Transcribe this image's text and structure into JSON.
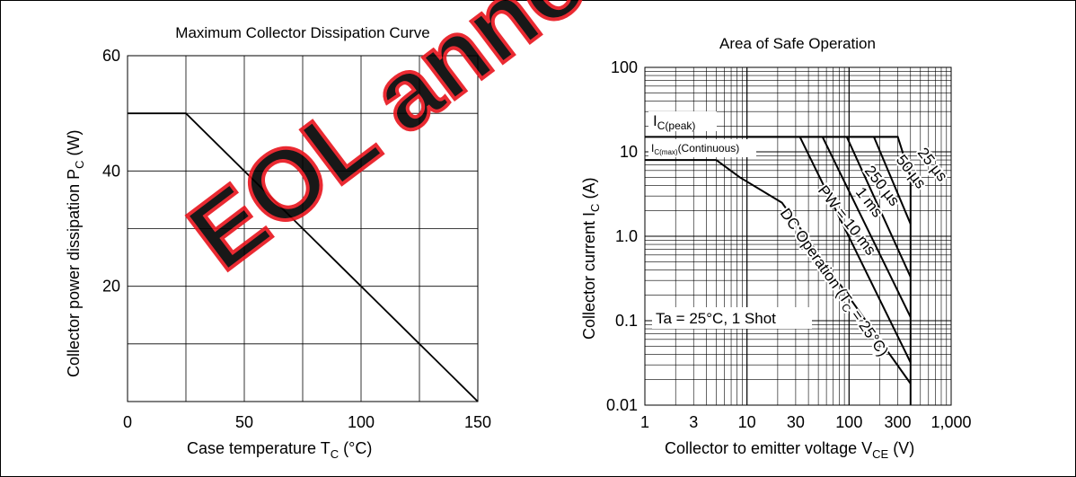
{
  "watermark": {
    "text": "EOL announced",
    "color": "#e8141c"
  },
  "chart_data": [
    {
      "type": "line",
      "title": "Maximum Collector Dissipation Curve",
      "xlabel": {
        "main": "Case temperature  T",
        "sub": "C",
        "unit": "(°C)"
      },
      "ylabel": {
        "main": "Collector power dissipation  P",
        "sub": "C",
        "unit": "(W)"
      },
      "xlim": [
        0,
        150
      ],
      "ylim": [
        0,
        60
      ],
      "x_ticks": [
        0,
        50,
        100,
        150
      ],
      "y_ticks": [
        20,
        40,
        60
      ],
      "grid": true,
      "series": [
        {
          "x": [
            0,
            25,
            150
          ],
          "y": [
            50,
            50,
            0
          ]
        }
      ]
    },
    {
      "type": "line",
      "title": "Area of Safe Operation",
      "xlabel": {
        "main": "Collector to emitter voltage  V",
        "sub": "CE",
        "unit": "(V)"
      },
      "ylabel": {
        "main": "Collector current  I",
        "sub": "C",
        "unit": "(A)"
      },
      "xscale": "log",
      "yscale": "log",
      "xlim": [
        1,
        1000
      ],
      "ylim": [
        0.01,
        100
      ],
      "x_ticks": [
        {
          "v": 1,
          "label": "1"
        },
        {
          "v": 3,
          "label": "3"
        },
        {
          "v": 10,
          "label": "10"
        },
        {
          "v": 30,
          "label": "30"
        },
        {
          "v": 100,
          "label": "100"
        },
        {
          "v": 300,
          "label": "300"
        },
        {
          "v": 1000,
          "label": "1,000"
        }
      ],
      "y_ticks": [
        {
          "v": 0.01,
          "label": "0.01"
        },
        {
          "v": 0.1,
          "label": "0.1"
        },
        {
          "v": 1,
          "label": "1.0"
        },
        {
          "v": 10,
          "label": "10"
        },
        {
          "v": 100,
          "label": "100"
        }
      ],
      "grid": true,
      "series": [
        {
          "name": "25 µs",
          "x": [
            10,
            300,
            400,
            400
          ],
          "y": [
            15,
            15,
            5,
            0.01
          ]
        },
        {
          "name": "50 µs",
          "x": [
            175,
            400
          ],
          "y": [
            15,
            1.4
          ]
        },
        {
          "name": "250 µs",
          "x": [
            95,
            400
          ],
          "y": [
            15,
            0.33
          ]
        },
        {
          "name": "1 ms",
          "x": [
            55,
            400
          ],
          "y": [
            15,
            0.11
          ]
        },
        {
          "name": "PW = 10 ms",
          "x": [
            33,
            400
          ],
          "y": [
            15,
            0.032
          ]
        },
        {
          "name": "DC Operation (T_C = 25°C)",
          "x": [
            5,
            8.5,
            22,
            400
          ],
          "y": [
            8,
            5,
            2.5,
            0.018
          ]
        },
        {
          "name": "I_C(peak)",
          "x": [
            1,
            300
          ],
          "y": [
            15,
            15
          ]
        },
        {
          "name": "I_C(max) (Continuous)",
          "x": [
            1,
            5
          ],
          "y": [
            8,
            8
          ]
        }
      ],
      "annotations": {
        "ic_peak": {
          "main": "I",
          "sub": "C(peak)"
        },
        "ic_max": {
          "main": "I",
          "sub": "C(max)",
          "suffix": "(Continuous)"
        },
        "t25": "25 µs",
        "t50": "50 µs",
        "t250": "250 µs",
        "t1ms": "1 ms",
        "pw10": "PW = 10 ms",
        "dc": {
          "main": "DC Operation (T",
          "sub": "C",
          "suffix": " = 25°C)"
        },
        "conditions": "Ta = 25°C, 1 Shot"
      }
    }
  ]
}
